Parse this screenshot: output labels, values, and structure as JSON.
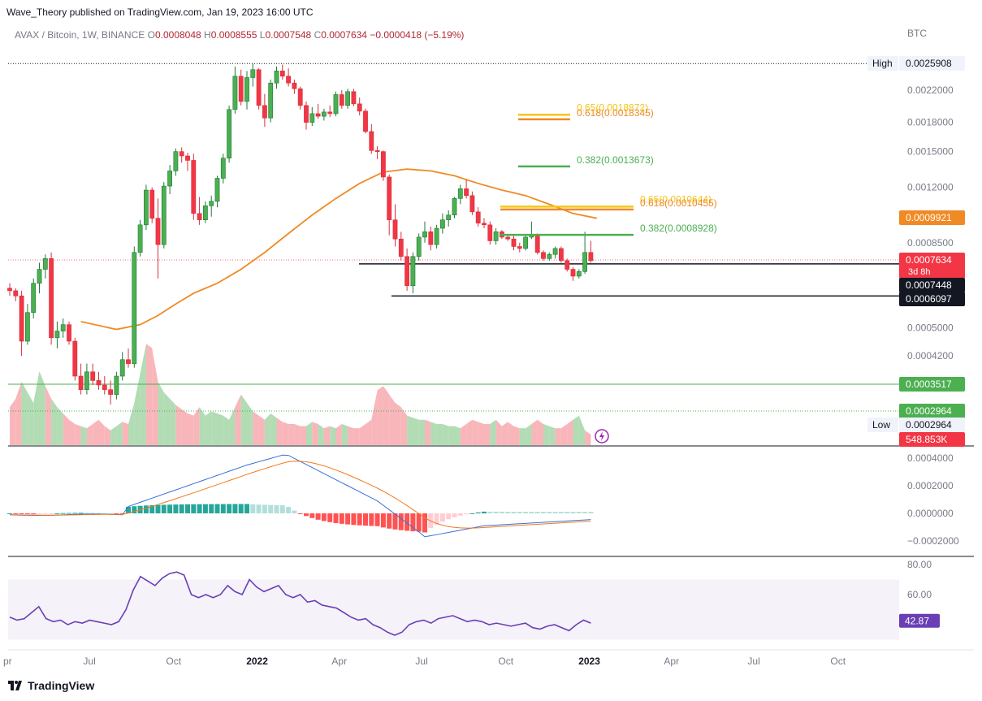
{
  "header": {
    "publisher": "Wave_Theory published on TradingView.com, Jan 19, 2023 16:00 UTC",
    "symbol": "AVAX / Bitcoin, 1W, BINANCE",
    "o_label": "O",
    "o_value": "0.0008048",
    "h_label": "H",
    "h_value": "0.0008555",
    "l_label": "L",
    "l_value": "0.0007548",
    "c_label": "C",
    "c_value": "0.0007634",
    "change": "−0.0000418 (−5.19%)",
    "currency": "BTC"
  },
  "footer": {
    "brand": "TradingView"
  },
  "colors": {
    "up": "#26a69a",
    "up_body": "#1f7a3a",
    "down": "#f23645",
    "down_body": "#d6303b",
    "ema": "#f08a24",
    "fib_green": "#4caf50",
    "fib_gold": "#f5c518",
    "fib_orange": "#f08a24",
    "macd": "#3a6fd8",
    "signal": "#f07a20",
    "rsi": "#6a3fb5"
  },
  "chart_data": [
    {
      "type": "candlestick",
      "title": "AVAX / Bitcoin, 1W, BINANCE",
      "scale": "log",
      "ylabel": "BTC",
      "y_ticks": [
        "0.0022000",
        "0.0018000",
        "0.0015000",
        "0.0012000",
        "0.0008500",
        "0.0005000",
        "0.0004200"
      ],
      "x_ticks": [
        "Jul",
        "Oct",
        "2022",
        "Apr",
        "Jul",
        "Oct",
        "2023",
        "Apr",
        "Jul",
        "Oct"
      ],
      "x_tick_left_partial": "Apr",
      "price_labels": [
        {
          "label": "High",
          "value": "0.0025908"
        },
        {
          "label": "",
          "value": "0.0009921"
        },
        {
          "label": "",
          "value": "0.0007634",
          "sub": "3d 8h"
        },
        {
          "label": "",
          "value": "0.0007448"
        },
        {
          "label": "",
          "value": "0.0006097"
        },
        {
          "label": "",
          "value": "0.0003517"
        },
        {
          "label": "",
          "value": "0.0002964"
        },
        {
          "label": "Low",
          "value": "0.0002964"
        }
      ],
      "fib_levels": [
        {
          "text": "0.65(0.0018872)",
          "value": 0.0018872,
          "color": "gold"
        },
        {
          "text": "0.618(0.0018345)",
          "value": 0.0018345,
          "color": "orange"
        },
        {
          "text": "0.382(0.0013673)",
          "value": 0.0013673,
          "color": "green"
        },
        {
          "text": "0.65(0.0010644)",
          "value": 0.0010644,
          "color": "gold"
        },
        {
          "text": "0.618(0.0010455)",
          "value": 0.0010455,
          "color": "orange"
        },
        {
          "text": "0.382(0.0008928)",
          "value": 0.0008928,
          "color": "green"
        }
      ],
      "support_lines": [
        0.0007448,
        0.0006097
      ],
      "horizontal_lines": [
        0.0003517,
        0.0002964
      ],
      "last_close": 0.0007634,
      "high": 0.0025908,
      "low": 0.0002964,
      "ema_value": 0.0009921,
      "candles": [
        [
          0.00064,
          0.00066,
          0.00061,
          0.00063
        ],
        [
          0.00063,
          0.00064,
          0.00059,
          0.00061
        ],
        [
          0.00061,
          0.00063,
          0.00042,
          0.00046
        ],
        [
          0.00046,
          0.00058,
          0.00045,
          0.00055
        ],
        [
          0.00055,
          0.00068,
          0.00053,
          0.00066
        ],
        [
          0.00066,
          0.00075,
          0.00062,
          0.00072
        ],
        [
          0.00072,
          0.00079,
          0.00068,
          0.00077
        ],
        [
          0.00077,
          0.0008,
          0.00045,
          0.00047
        ],
        [
          0.00047,
          0.00052,
          0.00044,
          0.00049
        ],
        [
          0.00049,
          0.00053,
          0.00047,
          0.00051
        ],
        [
          0.00051,
          0.00052,
          0.00045,
          0.00046
        ],
        [
          0.00046,
          0.00047,
          0.00036,
          0.00037
        ],
        [
          0.00037,
          0.0004,
          0.00033,
          0.00034
        ],
        [
          0.00034,
          0.0004,
          0.00033,
          0.00038
        ],
        [
          0.00038,
          0.0004,
          0.00035,
          0.00036
        ],
        [
          0.00036,
          0.00038,
          0.00034,
          0.00035
        ],
        [
          0.00035,
          0.00037,
          0.00033,
          0.00034
        ],
        [
          0.00034,
          0.00036,
          0.00031,
          0.00033
        ],
        [
          0.00033,
          0.00038,
          0.00032,
          0.00037
        ],
        [
          0.00037,
          0.00043,
          0.00036,
          0.00041
        ],
        [
          0.00041,
          0.00044,
          0.00039,
          0.0004
        ],
        [
          0.0004,
          0.00083,
          0.00039,
          0.0008
        ],
        [
          0.0008,
          0.00098,
          0.00078,
          0.00095
        ],
        [
          0.00095,
          0.00122,
          0.00092,
          0.00118
        ],
        [
          0.00118,
          0.0012,
          0.00096,
          0.00099
        ],
        [
          0.00099,
          0.00112,
          0.00068,
          0.00084
        ],
        [
          0.00084,
          0.00124,
          0.00082,
          0.00121
        ],
        [
          0.00121,
          0.00138,
          0.00115,
          0.00133
        ],
        [
          0.00133,
          0.00153,
          0.00129,
          0.0015
        ],
        [
          0.0015,
          0.00154,
          0.0014,
          0.00146
        ],
        [
          0.00146,
          0.00149,
          0.00133,
          0.00142
        ],
        [
          0.00142,
          0.00148,
          0.00098,
          0.00102
        ],
        [
          0.00102,
          0.00113,
          0.00095,
          0.00098
        ],
        [
          0.00098,
          0.0011,
          0.00096,
          0.00107
        ],
        [
          0.00107,
          0.00114,
          0.001,
          0.0011
        ],
        [
          0.0011,
          0.00129,
          0.00106,
          0.00127
        ],
        [
          0.00127,
          0.00148,
          0.00123,
          0.00144
        ],
        [
          0.00144,
          0.002,
          0.0014,
          0.00195
        ],
        [
          0.00195,
          0.00255,
          0.0019,
          0.0024
        ],
        [
          0.0024,
          0.0025,
          0.002,
          0.00205
        ],
        [
          0.00205,
          0.00248,
          0.00195,
          0.00238
        ],
        [
          0.00238,
          0.00259,
          0.00225,
          0.0025
        ],
        [
          0.0025,
          0.00252,
          0.00195,
          0.002
        ],
        [
          0.002,
          0.00215,
          0.00175,
          0.00185
        ],
        [
          0.00185,
          0.00235,
          0.0018,
          0.0023
        ],
        [
          0.0023,
          0.00255,
          0.00222,
          0.00248
        ],
        [
          0.00248,
          0.00258,
          0.00235,
          0.0024
        ],
        [
          0.0024,
          0.00252,
          0.00225,
          0.0023
        ],
        [
          0.0023,
          0.00235,
          0.00215,
          0.00222
        ],
        [
          0.00222,
          0.00225,
          0.00195,
          0.002
        ],
        [
          0.002,
          0.00205,
          0.00172,
          0.0018
        ],
        [
          0.0018,
          0.00198,
          0.00176,
          0.0019
        ],
        [
          0.0019,
          0.00202,
          0.00184,
          0.00187
        ],
        [
          0.00187,
          0.00196,
          0.00182,
          0.00192
        ],
        [
          0.00192,
          0.002,
          0.00186,
          0.0019
        ],
        [
          0.0019,
          0.00218,
          0.00187,
          0.00214
        ],
        [
          0.00214,
          0.0022,
          0.00196,
          0.002
        ],
        [
          0.002,
          0.00222,
          0.00196,
          0.00218
        ],
        [
          0.00218,
          0.00222,
          0.00199,
          0.00202
        ],
        [
          0.00202,
          0.0021,
          0.00188,
          0.00193
        ],
        [
          0.00193,
          0.00196,
          0.00168,
          0.0017
        ],
        [
          0.0017,
          0.00178,
          0.00148,
          0.00151
        ],
        [
          0.00151,
          0.00155,
          0.00143,
          0.0015
        ],
        [
          0.0015,
          0.00151,
          0.00125,
          0.00128
        ],
        [
          0.00128,
          0.0013,
          0.00089,
          0.00098
        ],
        [
          0.00098,
          0.00108,
          0.00083,
          0.00087
        ],
        [
          0.00087,
          0.00091,
          0.00076,
          0.00078
        ],
        [
          0.00078,
          0.00082,
          0.00063,
          0.00065
        ],
        [
          0.00065,
          0.0008,
          0.00062,
          0.00078
        ],
        [
          0.00078,
          0.0009,
          0.00076,
          0.00088
        ],
        [
          0.00088,
          0.00097,
          0.00085,
          0.00091
        ],
        [
          0.00091,
          0.00094,
          0.00081,
          0.00084
        ],
        [
          0.00084,
          0.00095,
          0.00082,
          0.00093
        ],
        [
          0.00093,
          0.00102,
          0.0009,
          0.00098
        ],
        [
          0.00098,
          0.00104,
          0.00094,
          0.00101
        ],
        [
          0.00101,
          0.00113,
          0.00099,
          0.00112
        ],
        [
          0.00112,
          0.00122,
          0.00108,
          0.00119
        ],
        [
          0.00119,
          0.00126,
          0.00112,
          0.00114
        ],
        [
          0.00114,
          0.00117,
          0.00101,
          0.00103
        ],
        [
          0.00103,
          0.00106,
          0.00094,
          0.00096
        ],
        [
          0.00096,
          0.00099,
          0.00093,
          0.00095
        ],
        [
          0.00095,
          0.00097,
          0.00084,
          0.00086
        ],
        [
          0.00086,
          0.00093,
          0.00084,
          0.00091
        ],
        [
          0.00091,
          0.00092,
          0.00087,
          0.00088
        ],
        [
          0.00088,
          0.00089,
          0.00086,
          0.00087
        ],
        [
          0.00087,
          0.00089,
          0.00081,
          0.00083
        ],
        [
          0.00083,
          0.00085,
          0.0008,
          0.00082
        ],
        [
          0.00082,
          0.00089,
          0.00081,
          0.00088
        ],
        [
          0.00088,
          0.00097,
          0.00087,
          0.00089
        ],
        [
          0.00089,
          0.0009,
          0.00079,
          0.0008
        ],
        [
          0.0008,
          0.00081,
          0.00076,
          0.00077
        ],
        [
          0.00077,
          0.0008,
          0.00076,
          0.00079
        ],
        [
          0.00079,
          0.00083,
          0.00077,
          0.00082
        ],
        [
          0.00082,
          0.00083,
          0.00075,
          0.00076
        ],
        [
          0.00076,
          0.00077,
          0.00071,
          0.00072
        ],
        [
          0.00072,
          0.00073,
          0.00067,
          0.00069
        ],
        [
          0.00069,
          0.00072,
          0.00068,
          0.00071
        ],
        [
          0.00071,
          0.00091,
          0.0007,
          0.0008
        ],
        [
          0.0008,
          0.00086,
          0.00075,
          0.00076
        ]
      ],
      "ema50": [
        [
          1,
          null
        ],
        [
          12,
          0.00052
        ],
        [
          18,
          0.000495
        ],
        [
          22,
          0.00051
        ],
        [
          25,
          0.00054
        ],
        [
          28,
          0.00058
        ],
        [
          31,
          0.00062
        ],
        [
          35,
          0.00066
        ],
        [
          39,
          0.00072
        ],
        [
          43,
          0.0008
        ],
        [
          47,
          0.0009
        ],
        [
          51,
          0.00101
        ],
        [
          55,
          0.00112
        ],
        [
          59,
          0.00123
        ],
        [
          63,
          0.00132
        ],
        [
          67,
          0.001345
        ],
        [
          71,
          0.00133
        ],
        [
          75,
          0.00129
        ],
        [
          79,
          0.00123
        ],
        [
          83,
          0.00118
        ],
        [
          87,
          0.00114
        ],
        [
          91,
          0.00108
        ],
        [
          95,
          0.00102
        ],
        [
          99,
          0.00099
        ]
      ]
    },
    {
      "type": "area",
      "name": "Volume",
      "value_label": "548.853K",
      "values": [
        18,
        22,
        30,
        25,
        20,
        35,
        28,
        22,
        18,
        15,
        12,
        10,
        9,
        8,
        10,
        12,
        9,
        7,
        9,
        11,
        10,
        20,
        34,
        48,
        46,
        30,
        25,
        22,
        19,
        17,
        15,
        14,
        18,
        14,
        16,
        15,
        14,
        12,
        18,
        24,
        20,
        16,
        14,
        12,
        15,
        13,
        11,
        10,
        10,
        9,
        9,
        11,
        10,
        8,
        9,
        8,
        10,
        9,
        8,
        8,
        10,
        12,
        26,
        28,
        24,
        20,
        18,
        14,
        13,
        12,
        12,
        11,
        10,
        10,
        9,
        9,
        8,
        10,
        12,
        11,
        10,
        10,
        12,
        9,
        11,
        9,
        8,
        8,
        10,
        12,
        10,
        9,
        8,
        8,
        10,
        12,
        14,
        7,
        5
      ]
    },
    {
      "type": "line",
      "name": "MACD",
      "y_ticks": [
        "0.0004000",
        "0.0002000",
        "0.0000000",
        "−0.0002000"
      ]
    },
    {
      "type": "line",
      "name": "RSI",
      "y_ticks": [
        "80.00",
        "60.00"
      ],
      "value_label": "42.87",
      "values": [
        45,
        43,
        44,
        48,
        52,
        44,
        42,
        43,
        40,
        42,
        41,
        43,
        42,
        41,
        40,
        42,
        50,
        63,
        72,
        69,
        66,
        71,
        74,
        75,
        73,
        60,
        58,
        60,
        58,
        60,
        66,
        62,
        60,
        70,
        65,
        62,
        64,
        66,
        60,
        58,
        60,
        55,
        56,
        53,
        52,
        51,
        48,
        45,
        43,
        44,
        40,
        38,
        35,
        33,
        35,
        40,
        42,
        43,
        41,
        44,
        45,
        46,
        44,
        42,
        43,
        42,
        40,
        41,
        40,
        39,
        40,
        41,
        38,
        37,
        39,
        40,
        38,
        36,
        40,
        43,
        41
      ]
    }
  ]
}
